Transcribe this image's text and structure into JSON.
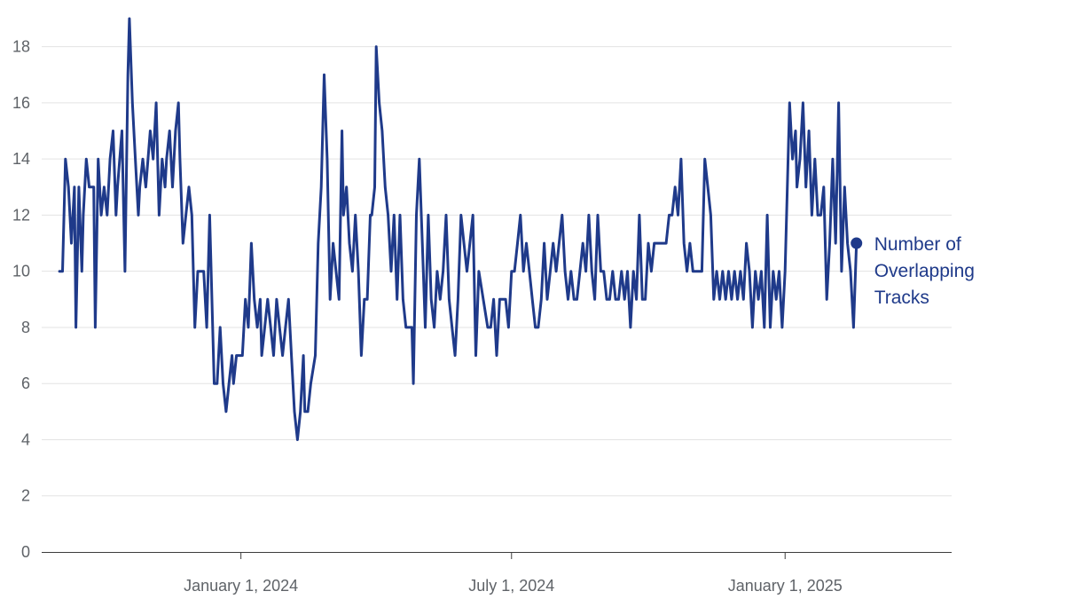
{
  "chart_data": {
    "type": "line",
    "title": "",
    "xlabel": "",
    "ylabel": "",
    "ylim": [
      0,
      19
    ],
    "xlim": [
      "2023-08-20",
      "2025-04-23"
    ],
    "y_ticks": [
      0,
      2,
      4,
      6,
      8,
      10,
      12,
      14,
      16,
      18
    ],
    "x_ticks": [
      {
        "date": "2024-01-01",
        "label": "January 1, 2024"
      },
      {
        "date": "2024-07-01",
        "label": "July 1, 2024"
      },
      {
        "date": "2025-01-01",
        "label": "January 1, 2025"
      }
    ],
    "grid": {
      "horizontal": true,
      "vertical": false
    },
    "legend": {
      "placement": "end-of-line",
      "lines": [
        "Number of",
        "Overlapping",
        "Tracks"
      ]
    },
    "series": [
      {
        "name": "Number of Overlapping Tracks",
        "color": "#1f3a8a",
        "points": [
          [
            "2023-09-01",
            10
          ],
          [
            "2023-09-03",
            10
          ],
          [
            "2023-09-05",
            14
          ],
          [
            "2023-09-07",
            13
          ],
          [
            "2023-09-09",
            11
          ],
          [
            "2023-09-11",
            13
          ],
          [
            "2023-09-12",
            8
          ],
          [
            "2023-09-14",
            13
          ],
          [
            "2023-09-16",
            10
          ],
          [
            "2023-09-17",
            12
          ],
          [
            "2023-09-19",
            14
          ],
          [
            "2023-09-21",
            13
          ],
          [
            "2023-09-24",
            13
          ],
          [
            "2023-09-25",
            8
          ],
          [
            "2023-09-27",
            14
          ],
          [
            "2023-09-29",
            12
          ],
          [
            "2023-10-01",
            13
          ],
          [
            "2023-10-03",
            12
          ],
          [
            "2023-10-05",
            14
          ],
          [
            "2023-10-07",
            15
          ],
          [
            "2023-10-09",
            12
          ],
          [
            "2023-10-10",
            13
          ],
          [
            "2023-10-13",
            15
          ],
          [
            "2023-10-15",
            10
          ],
          [
            "2023-10-17",
            17
          ],
          [
            "2023-10-18",
            19
          ],
          [
            "2023-10-20",
            16
          ],
          [
            "2023-10-22",
            14
          ],
          [
            "2023-10-24",
            12
          ],
          [
            "2023-10-25",
            13
          ],
          [
            "2023-10-27",
            14
          ],
          [
            "2023-10-29",
            13
          ],
          [
            "2023-11-01",
            15
          ],
          [
            "2023-11-03",
            14
          ],
          [
            "2023-11-05",
            16
          ],
          [
            "2023-11-07",
            12
          ],
          [
            "2023-11-09",
            14
          ],
          [
            "2023-11-11",
            13
          ],
          [
            "2023-11-12",
            14
          ],
          [
            "2023-11-14",
            15
          ],
          [
            "2023-11-16",
            13
          ],
          [
            "2023-11-18",
            15
          ],
          [
            "2023-11-20",
            16
          ],
          [
            "2023-11-21",
            14
          ],
          [
            "2023-11-23",
            11
          ],
          [
            "2023-11-25",
            12
          ],
          [
            "2023-11-27",
            13
          ],
          [
            "2023-11-29",
            12
          ],
          [
            "2023-12-01",
            8
          ],
          [
            "2023-12-03",
            10
          ],
          [
            "2023-12-07",
            10
          ],
          [
            "2023-12-09",
            8
          ],
          [
            "2023-12-11",
            12
          ],
          [
            "2023-12-12",
            10
          ],
          [
            "2023-12-14",
            6
          ],
          [
            "2023-12-16",
            6
          ],
          [
            "2023-12-18",
            8
          ],
          [
            "2023-12-20",
            6
          ],
          [
            "2023-12-22",
            5
          ],
          [
            "2023-12-24",
            6
          ],
          [
            "2023-12-26",
            7
          ],
          [
            "2023-12-27",
            6
          ],
          [
            "2023-12-29",
            7
          ],
          [
            "2024-01-02",
            7
          ],
          [
            "2024-01-04",
            9
          ],
          [
            "2024-01-06",
            8
          ],
          [
            "2024-01-08",
            11
          ],
          [
            "2024-01-10",
            9
          ],
          [
            "2024-01-12",
            8
          ],
          [
            "2024-01-14",
            9
          ],
          [
            "2024-01-15",
            7
          ],
          [
            "2024-01-17",
            8
          ],
          [
            "2024-01-19",
            9
          ],
          [
            "2024-01-21",
            8
          ],
          [
            "2024-01-23",
            7
          ],
          [
            "2024-01-25",
            9
          ],
          [
            "2024-01-27",
            8
          ],
          [
            "2024-01-29",
            7
          ],
          [
            "2024-01-31",
            8
          ],
          [
            "2024-02-02",
            9
          ],
          [
            "2024-02-04",
            7
          ],
          [
            "2024-02-06",
            5
          ],
          [
            "2024-02-08",
            4
          ],
          [
            "2024-02-10",
            5
          ],
          [
            "2024-02-12",
            7
          ],
          [
            "2024-02-13",
            5
          ],
          [
            "2024-02-15",
            5
          ],
          [
            "2024-02-17",
            6
          ],
          [
            "2024-02-20",
            7
          ],
          [
            "2024-02-22",
            11
          ],
          [
            "2024-02-24",
            13
          ],
          [
            "2024-02-26",
            17
          ],
          [
            "2024-02-28",
            14
          ],
          [
            "2024-03-01",
            9
          ],
          [
            "2024-03-03",
            11
          ],
          [
            "2024-03-05",
            10
          ],
          [
            "2024-03-07",
            9
          ],
          [
            "2024-03-09",
            15
          ],
          [
            "2024-03-10",
            12
          ],
          [
            "2024-03-12",
            13
          ],
          [
            "2024-03-14",
            11
          ],
          [
            "2024-03-16",
            10
          ],
          [
            "2024-03-18",
            12
          ],
          [
            "2024-03-20",
            10
          ],
          [
            "2024-03-22",
            7
          ],
          [
            "2024-03-24",
            9
          ],
          [
            "2024-03-26",
            9
          ],
          [
            "2024-03-28",
            12
          ],
          [
            "2024-03-29",
            12
          ],
          [
            "2024-03-31",
            13
          ],
          [
            "2024-04-01",
            18
          ],
          [
            "2024-04-03",
            16
          ],
          [
            "2024-04-05",
            15
          ],
          [
            "2024-04-07",
            13
          ],
          [
            "2024-04-09",
            12
          ],
          [
            "2024-04-11",
            10
          ],
          [
            "2024-04-13",
            12
          ],
          [
            "2024-04-15",
            9
          ],
          [
            "2024-04-17",
            12
          ],
          [
            "2024-04-19",
            9
          ],
          [
            "2024-04-21",
            8
          ],
          [
            "2024-04-25",
            8
          ],
          [
            "2024-04-26",
            6
          ],
          [
            "2024-04-28",
            12
          ],
          [
            "2024-04-30",
            14
          ],
          [
            "2024-05-02",
            11
          ],
          [
            "2024-05-04",
            8
          ],
          [
            "2024-05-06",
            12
          ],
          [
            "2024-05-08",
            9
          ],
          [
            "2024-05-10",
            8
          ],
          [
            "2024-05-12",
            10
          ],
          [
            "2024-05-14",
            9
          ],
          [
            "2024-05-16",
            10
          ],
          [
            "2024-05-18",
            12
          ],
          [
            "2024-05-20",
            9
          ],
          [
            "2024-05-22",
            8
          ],
          [
            "2024-05-24",
            7
          ],
          [
            "2024-05-26",
            9
          ],
          [
            "2024-05-28",
            12
          ],
          [
            "2024-05-30",
            11
          ],
          [
            "2024-06-01",
            10
          ],
          [
            "2024-06-03",
            11
          ],
          [
            "2024-06-05",
            12
          ],
          [
            "2024-06-07",
            7
          ],
          [
            "2024-06-09",
            10
          ],
          [
            "2024-06-15",
            8
          ],
          [
            "2024-06-17",
            8
          ],
          [
            "2024-06-19",
            9
          ],
          [
            "2024-06-21",
            7
          ],
          [
            "2024-06-23",
            9
          ],
          [
            "2024-06-27",
            9
          ],
          [
            "2024-06-29",
            8
          ],
          [
            "2024-07-01",
            10
          ],
          [
            "2024-07-03",
            10
          ],
          [
            "2024-07-05",
            11
          ],
          [
            "2024-07-07",
            12
          ],
          [
            "2024-07-09",
            10
          ],
          [
            "2024-07-11",
            11
          ],
          [
            "2024-07-13",
            10
          ],
          [
            "2024-07-15",
            9
          ],
          [
            "2024-07-17",
            8
          ],
          [
            "2024-07-19",
            8
          ],
          [
            "2024-07-21",
            9
          ],
          [
            "2024-07-23",
            11
          ],
          [
            "2024-07-25",
            9
          ],
          [
            "2024-07-27",
            10
          ],
          [
            "2024-07-29",
            11
          ],
          [
            "2024-07-31",
            10
          ],
          [
            "2024-08-02",
            11
          ],
          [
            "2024-08-04",
            12
          ],
          [
            "2024-08-06",
            10
          ],
          [
            "2024-08-08",
            9
          ],
          [
            "2024-08-10",
            10
          ],
          [
            "2024-08-12",
            9
          ],
          [
            "2024-08-14",
            9
          ],
          [
            "2024-08-16",
            10
          ],
          [
            "2024-08-18",
            11
          ],
          [
            "2024-08-20",
            10
          ],
          [
            "2024-08-22",
            12
          ],
          [
            "2024-08-24",
            10
          ],
          [
            "2024-08-26",
            9
          ],
          [
            "2024-08-28",
            12
          ],
          [
            "2024-08-30",
            10
          ],
          [
            "2024-09-01",
            10
          ],
          [
            "2024-09-03",
            9
          ],
          [
            "2024-09-05",
            9
          ],
          [
            "2024-09-07",
            10
          ],
          [
            "2024-09-09",
            9
          ],
          [
            "2024-09-11",
            9
          ],
          [
            "2024-09-13",
            10
          ],
          [
            "2024-09-15",
            9
          ],
          [
            "2024-09-17",
            10
          ],
          [
            "2024-09-19",
            8
          ],
          [
            "2024-09-21",
            10
          ],
          [
            "2024-09-23",
            9
          ],
          [
            "2024-09-25",
            12
          ],
          [
            "2024-09-27",
            9
          ],
          [
            "2024-09-29",
            9
          ],
          [
            "2024-10-01",
            11
          ],
          [
            "2024-10-03",
            10
          ],
          [
            "2024-10-05",
            11
          ],
          [
            "2024-10-07",
            11
          ],
          [
            "2024-10-10",
            11
          ],
          [
            "2024-10-13",
            11
          ],
          [
            "2024-10-15",
            12
          ],
          [
            "2024-10-17",
            12
          ],
          [
            "2024-10-19",
            13
          ],
          [
            "2024-10-21",
            12
          ],
          [
            "2024-10-23",
            14
          ],
          [
            "2024-10-25",
            11
          ],
          [
            "2024-10-27",
            10
          ],
          [
            "2024-10-29",
            11
          ],
          [
            "2024-10-31",
            10
          ],
          [
            "2024-11-02",
            10
          ],
          [
            "2024-11-06",
            10
          ],
          [
            "2024-11-08",
            14
          ],
          [
            "2024-11-10",
            13
          ],
          [
            "2024-11-12",
            12
          ],
          [
            "2024-11-14",
            9
          ],
          [
            "2024-11-16",
            10
          ],
          [
            "2024-11-18",
            9
          ],
          [
            "2024-11-20",
            10
          ],
          [
            "2024-11-22",
            9
          ],
          [
            "2024-11-24",
            10
          ],
          [
            "2024-11-26",
            9
          ],
          [
            "2024-11-28",
            10
          ],
          [
            "2024-11-30",
            9
          ],
          [
            "2024-12-02",
            10
          ],
          [
            "2024-12-04",
            9
          ],
          [
            "2024-12-06",
            11
          ],
          [
            "2024-12-08",
            10
          ],
          [
            "2024-12-10",
            8
          ],
          [
            "2024-12-12",
            10
          ],
          [
            "2024-12-14",
            9
          ],
          [
            "2024-12-16",
            10
          ],
          [
            "2024-12-18",
            8
          ],
          [
            "2024-12-20",
            12
          ],
          [
            "2024-12-22",
            8
          ],
          [
            "2024-12-24",
            10
          ],
          [
            "2024-12-26",
            9
          ],
          [
            "2024-12-28",
            10
          ],
          [
            "2024-12-30",
            8
          ],
          [
            "2025-01-01",
            10
          ],
          [
            "2025-01-04",
            16
          ],
          [
            "2025-01-06",
            14
          ],
          [
            "2025-01-08",
            15
          ],
          [
            "2025-01-09",
            13
          ],
          [
            "2025-01-11",
            14
          ],
          [
            "2025-01-13",
            16
          ],
          [
            "2025-01-15",
            13
          ],
          [
            "2025-01-17",
            15
          ],
          [
            "2025-01-19",
            12
          ],
          [
            "2025-01-21",
            14
          ],
          [
            "2025-01-23",
            12
          ],
          [
            "2025-01-25",
            12
          ],
          [
            "2025-01-27",
            13
          ],
          [
            "2025-01-29",
            9
          ],
          [
            "2025-01-31",
            11
          ],
          [
            "2025-02-02",
            14
          ],
          [
            "2025-02-04",
            11
          ],
          [
            "2025-02-06",
            16
          ],
          [
            "2025-02-08",
            10
          ],
          [
            "2025-02-10",
            13
          ],
          [
            "2025-02-12",
            11
          ],
          [
            "2025-02-14",
            10
          ],
          [
            "2025-02-16",
            8
          ],
          [
            "2025-02-18",
            11
          ]
        ]
      }
    ]
  }
}
